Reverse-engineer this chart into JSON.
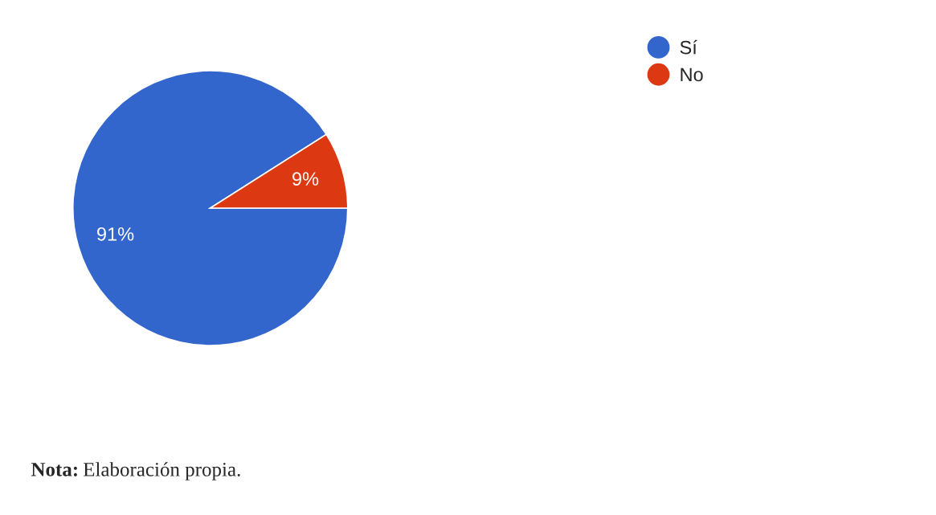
{
  "chart_data": {
    "type": "pie",
    "categories": [
      "Sí",
      "No"
    ],
    "values": [
      91,
      9
    ],
    "colors": [
      "#3366cc",
      "#dc3912"
    ],
    "value_labels": [
      "91%",
      "9%"
    ],
    "legend": "top right",
    "annotations": [
      "Nota: Elaboración propia."
    ]
  }
}
